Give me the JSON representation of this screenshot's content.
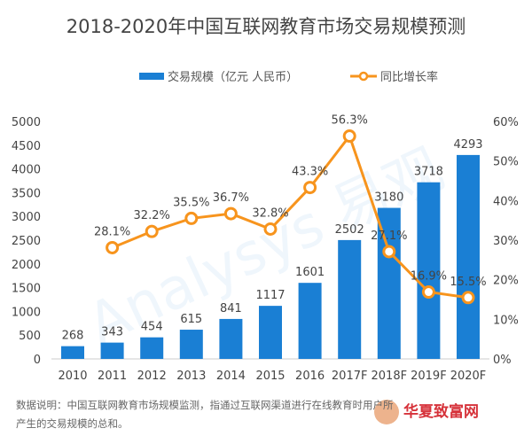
{
  "chart_data": {
    "type": "bar+line",
    "title": "2018-2020年中国互联网教育市场交易规模预测",
    "categories": [
      "2010",
      "2011",
      "2012",
      "2013",
      "2014",
      "2015",
      "2016",
      "2017F",
      "2018F",
      "2019F",
      "2020F"
    ],
    "series": [
      {
        "name": "交易规模（亿元 人民币）",
        "type": "bar",
        "axis": "left",
        "values": [
          268,
          343,
          454,
          615,
          841,
          1117,
          1601,
          2502,
          3180,
          3718,
          4293
        ],
        "color": "#1a7fd4"
      },
      {
        "name": "同比增长率",
        "type": "line",
        "axis": "right",
        "values": [
          null,
          28.1,
          32.2,
          35.5,
          36.7,
          32.8,
          43.3,
          56.3,
          27.1,
          16.9,
          15.5
        ],
        "labels": [
          "",
          "28.1%",
          "32.2%",
          "35.5%",
          "36.7%",
          "32.8%",
          "43.3%",
          "56.3%",
          "27.1%",
          "16.9%",
          "15.5%"
        ],
        "color": "#f7941d"
      }
    ],
    "ylim_left": [
      0,
      5000
    ],
    "yticks_left": [
      "0",
      "500",
      "1000",
      "1500",
      "2000",
      "2500",
      "3000",
      "3500",
      "4000",
      "4500",
      "5000"
    ],
    "ylim_right": [
      0,
      60
    ],
    "yticks_right": [
      "0%",
      "10%",
      "20%",
      "30%",
      "40%",
      "50%",
      "60%"
    ],
    "grid": false,
    "legend": "top"
  },
  "note": {
    "line1": "数据说明：中国互联网教育市场规模监测，指通过互联网渠道进行在线教育时用户所",
    "line2": "产生的交易规模的总和。"
  },
  "watermark": "Analysys 易观",
  "logo": "华夏致富网"
}
